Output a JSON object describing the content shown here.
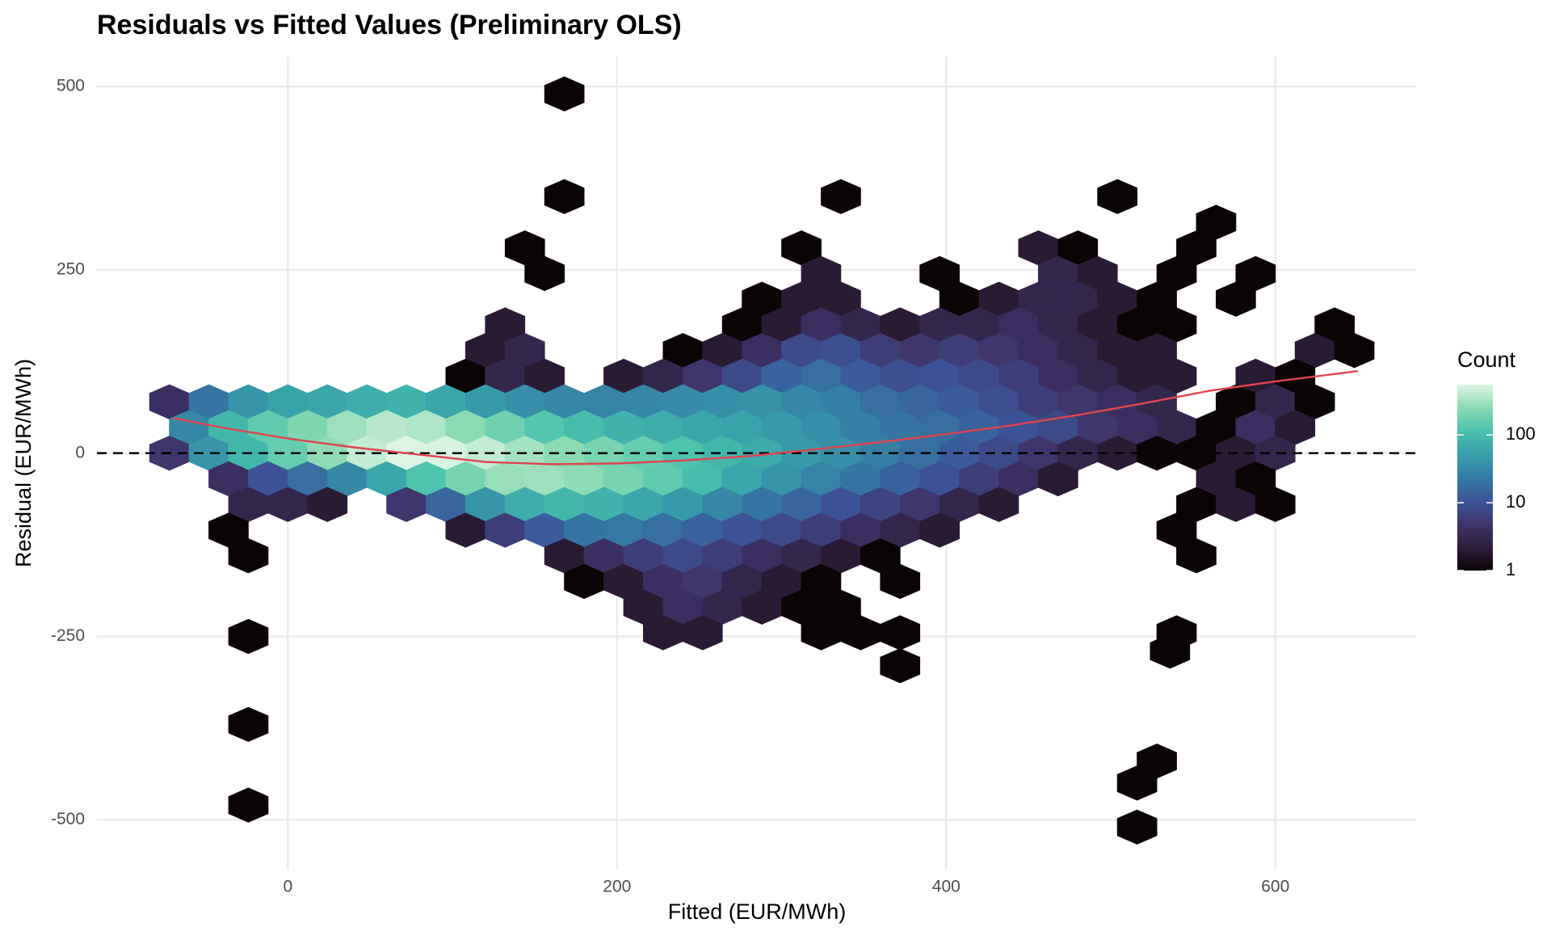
{
  "chart_data": {
    "type": "hexbin",
    "title": "Residuals vs Fitted Values (Preliminary OLS)",
    "x_label": "Fitted (EUR/MWh)",
    "y_label": "Residual (EUR/MWh)",
    "xlim": [
      -116,
      686
    ],
    "ylim": [
      -568,
      541
    ],
    "xticks": [
      0,
      200,
      400,
      600
    ],
    "yticks": [
      -500,
      -250,
      0,
      250,
      500
    ],
    "grid": true,
    "hexbins": [
      {
        "y": 490,
        "x": [
          168
        ],
        "counts": [
          1
        ]
      },
      {
        "y": 350,
        "x": [
          168,
          336,
          504
        ],
        "counts": [
          1,
          1,
          1
        ]
      },
      {
        "y": 315,
        "x": [
          564
        ],
        "counts": [
          1
        ]
      },
      {
        "y": 280,
        "x": [
          144,
          312,
          456,
          480,
          552
        ],
        "counts": [
          1,
          1,
          2,
          1,
          1
        ]
      },
      {
        "y": 245,
        "x": [
          156,
          324,
          396,
          468,
          492,
          540,
          588
        ],
        "counts": [
          1,
          2,
          1,
          3,
          2,
          1,
          1
        ]
      },
      {
        "y": 210,
        "x": [
          288,
          312,
          336,
          408,
          432,
          456,
          480,
          504,
          528,
          576
        ],
        "counts": [
          1,
          2,
          2,
          1,
          2,
          3,
          3,
          2,
          1,
          1
        ]
      },
      {
        "y": 175,
        "x": [
          132,
          276,
          300,
          324,
          348,
          372,
          396,
          420,
          444,
          468,
          492,
          516,
          540,
          636
        ],
        "counts": [
          2,
          1,
          2,
          4,
          3,
          2,
          3,
          3,
          4,
          3,
          2,
          1,
          1,
          1
        ]
      },
      {
        "y": 140,
        "x": [
          120,
          144,
          240,
          264,
          288,
          312,
          336,
          360,
          384,
          408,
          432,
          456,
          480,
          504,
          528,
          624,
          648
        ],
        "counts": [
          2,
          3,
          1,
          2,
          4,
          8,
          9,
          6,
          5,
          6,
          5,
          4,
          3,
          2,
          2,
          2,
          1
        ]
      },
      {
        "y": 105,
        "x": [
          108,
          132,
          156,
          204,
          228,
          252,
          276,
          300,
          324,
          348,
          372,
          396,
          420,
          444,
          468,
          492,
          516,
          540,
          588,
          612
        ],
        "counts": [
          1,
          3,
          2,
          2,
          3,
          5,
          8,
          14,
          18,
          12,
          9,
          10,
          8,
          6,
          4,
          3,
          2,
          2,
          2,
          1
        ]
      },
      {
        "y": 70,
        "x": [
          -72,
          -48,
          -24,
          0,
          24,
          48,
          72,
          96,
          120,
          144,
          168,
          192,
          216,
          240,
          264,
          288,
          312,
          336,
          360,
          384,
          408,
          432,
          456,
          480,
          504,
          528,
          576,
          600,
          624
        ],
        "counts": [
          4,
          20,
          40,
          55,
          60,
          70,
          80,
          60,
          45,
          35,
          30,
          28,
          30,
          32,
          35,
          38,
          30,
          25,
          18,
          15,
          12,
          9,
          6,
          5,
          4,
          3,
          1,
          3,
          1
        ]
      },
      {
        "y": 35,
        "x": [
          -60,
          -36,
          -12,
          12,
          36,
          60,
          84,
          108,
          132,
          156,
          180,
          204,
          228,
          252,
          276,
          300,
          324,
          348,
          372,
          396,
          420,
          444,
          468,
          492,
          516,
          540,
          564,
          588,
          612
        ],
        "counts": [
          30,
          90,
          150,
          220,
          300,
          380,
          350,
          250,
          180,
          130,
          100,
          80,
          70,
          60,
          55,
          45,
          35,
          25,
          20,
          18,
          14,
          10,
          8,
          5,
          4,
          3,
          1,
          4,
          2
        ]
      },
      {
        "y": 0,
        "x": [
          -72,
          -48,
          -24,
          0,
          24,
          48,
          72,
          96,
          120,
          144,
          168,
          192,
          216,
          240,
          264,
          288,
          312,
          336,
          360,
          384,
          408,
          432,
          456,
          480,
          504,
          528,
          552,
          576,
          600
        ],
        "counts": [
          5,
          40,
          90,
          160,
          260,
          420,
          560,
          520,
          420,
          320,
          250,
          200,
          160,
          120,
          90,
          65,
          45,
          35,
          25,
          18,
          12,
          8,
          5,
          3,
          2,
          1,
          1,
          2,
          3
        ]
      },
      {
        "y": -35,
        "x": [
          -36,
          -12,
          12,
          36,
          60,
          84,
          108,
          132,
          156,
          180,
          204,
          228,
          252,
          276,
          300,
          324,
          348,
          372,
          396,
          420,
          444,
          468,
          564,
          588
        ],
        "counts": [
          4,
          10,
          18,
          30,
          60,
          120,
          200,
          280,
          300,
          260,
          200,
          150,
          100,
          60,
          40,
          28,
          20,
          14,
          10,
          6,
          4,
          2,
          2,
          1
        ]
      },
      {
        "y": -70,
        "x": [
          -24,
          0,
          24,
          72,
          96,
          120,
          144,
          168,
          192,
          216,
          240,
          264,
          288,
          312,
          336,
          360,
          384,
          408,
          432,
          552,
          576,
          600
        ],
        "counts": [
          3,
          3,
          2,
          5,
          15,
          40,
          70,
          90,
          80,
          60,
          45,
          30,
          20,
          15,
          10,
          7,
          5,
          3,
          2,
          1,
          2,
          1
        ]
      },
      {
        "y": -105,
        "x": [
          -36,
          108,
          132,
          156,
          180,
          204,
          228,
          252,
          276,
          300,
          324,
          348,
          372,
          396,
          540
        ],
        "counts": [
          1,
          2,
          6,
          12,
          20,
          22,
          18,
          14,
          10,
          8,
          6,
          4,
          3,
          2,
          1
        ]
      },
      {
        "y": -140,
        "x": [
          -24,
          168,
          192,
          216,
          240,
          264,
          288,
          312,
          336,
          360,
          552
        ],
        "counts": [
          1,
          2,
          4,
          6,
          8,
          6,
          4,
          3,
          2,
          1,
          1
        ]
      },
      {
        "y": -175,
        "x": [
          180,
          204,
          228,
          252,
          276,
          300,
          324,
          372
        ],
        "counts": [
          1,
          2,
          4,
          5,
          3,
          2,
          1,
          1
        ]
      },
      {
        "y": -210,
        "x": [
          216,
          240,
          264,
          288,
          312,
          336
        ],
        "counts": [
          2,
          4,
          3,
          2,
          1,
          1
        ]
      },
      {
        "y": -245,
        "x": [
          228,
          252,
          324,
          348,
          372,
          540
        ],
        "counts": [
          2,
          2,
          1,
          1,
          1,
          1
        ]
      },
      {
        "y": -250,
        "x": [
          -24
        ],
        "counts": [
          1
        ]
      },
      {
        "y": -270,
        "x": [
          536
        ],
        "counts": [
          1
        ]
      },
      {
        "y": -290,
        "x": [
          372
        ],
        "counts": [
          1
        ]
      },
      {
        "y": -370,
        "x": [
          -24
        ],
        "counts": [
          1
        ]
      },
      {
        "y": -420,
        "x": [
          528
        ],
        "counts": [
          1
        ]
      },
      {
        "y": -450,
        "x": [
          516
        ],
        "counts": [
          1
        ]
      },
      {
        "y": -480,
        "x": [
          -24
        ],
        "counts": [
          1
        ]
      },
      {
        "y": -510,
        "x": [
          516
        ],
        "counts": [
          1
        ]
      }
    ],
    "smooth": {
      "color": "#e0434f",
      "x": [
        -70,
        -40,
        0,
        40,
        80,
        120,
        160,
        200,
        240,
        280,
        320,
        360,
        400,
        440,
        480,
        520,
        560,
        600,
        650
      ],
      "y": [
        48,
        35,
        20,
        8,
        -2,
        -12,
        -15,
        -14,
        -10,
        -4,
        5,
        15,
        26,
        38,
        52,
        68,
        85,
        98,
        112
      ]
    },
    "hline": {
      "value": 0,
      "style": "dashed",
      "color": "#000000"
    },
    "colorbar": {
      "title": "Count",
      "scale": "log",
      "lim": [
        1,
        550
      ],
      "ticks": [
        1,
        10,
        100
      ],
      "colors": [
        "#0b0405",
        "#2e1e3c",
        "#3e356b",
        "#3b5698",
        "#357ba3",
        "#38a0ac",
        "#49c1ad",
        "#8bdab2",
        "#def5e5"
      ]
    }
  }
}
